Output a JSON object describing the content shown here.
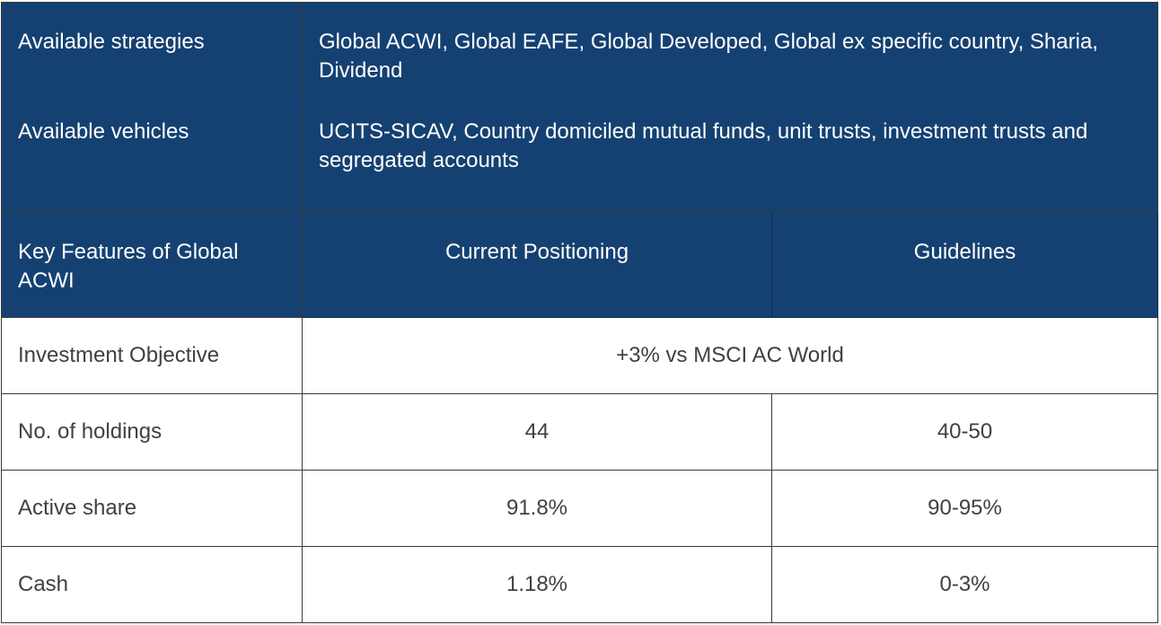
{
  "strategies": {
    "label": "Available strategies",
    "value": "Global ACWI, Global EAFE, Global Developed, Global ex specific country, Sharia, Dividend"
  },
  "vehicles": {
    "label": "Available vehicles",
    "value": "UCITS-SICAV, Country domiciled mutual funds, unit trusts, investment trusts and segregated accounts"
  },
  "header": {
    "feature": "Key Features of Global ACWI",
    "current": "Current Positioning",
    "guidelines": "Guidelines"
  },
  "objective": {
    "label": "Investment Objective",
    "value": "+3% vs MSCI AC World"
  },
  "rows": [
    {
      "label": "No. of holdings",
      "current": "44",
      "guideline": "40-50"
    },
    {
      "label": "Active share",
      "current": "91.8%",
      "guideline": "90-95%"
    },
    {
      "label": "Cash",
      "current": "1.18%",
      "guideline": "0-3%"
    }
  ],
  "colors": {
    "navy": "#154172",
    "text": "#414042",
    "border": "#3a3a3a"
  }
}
